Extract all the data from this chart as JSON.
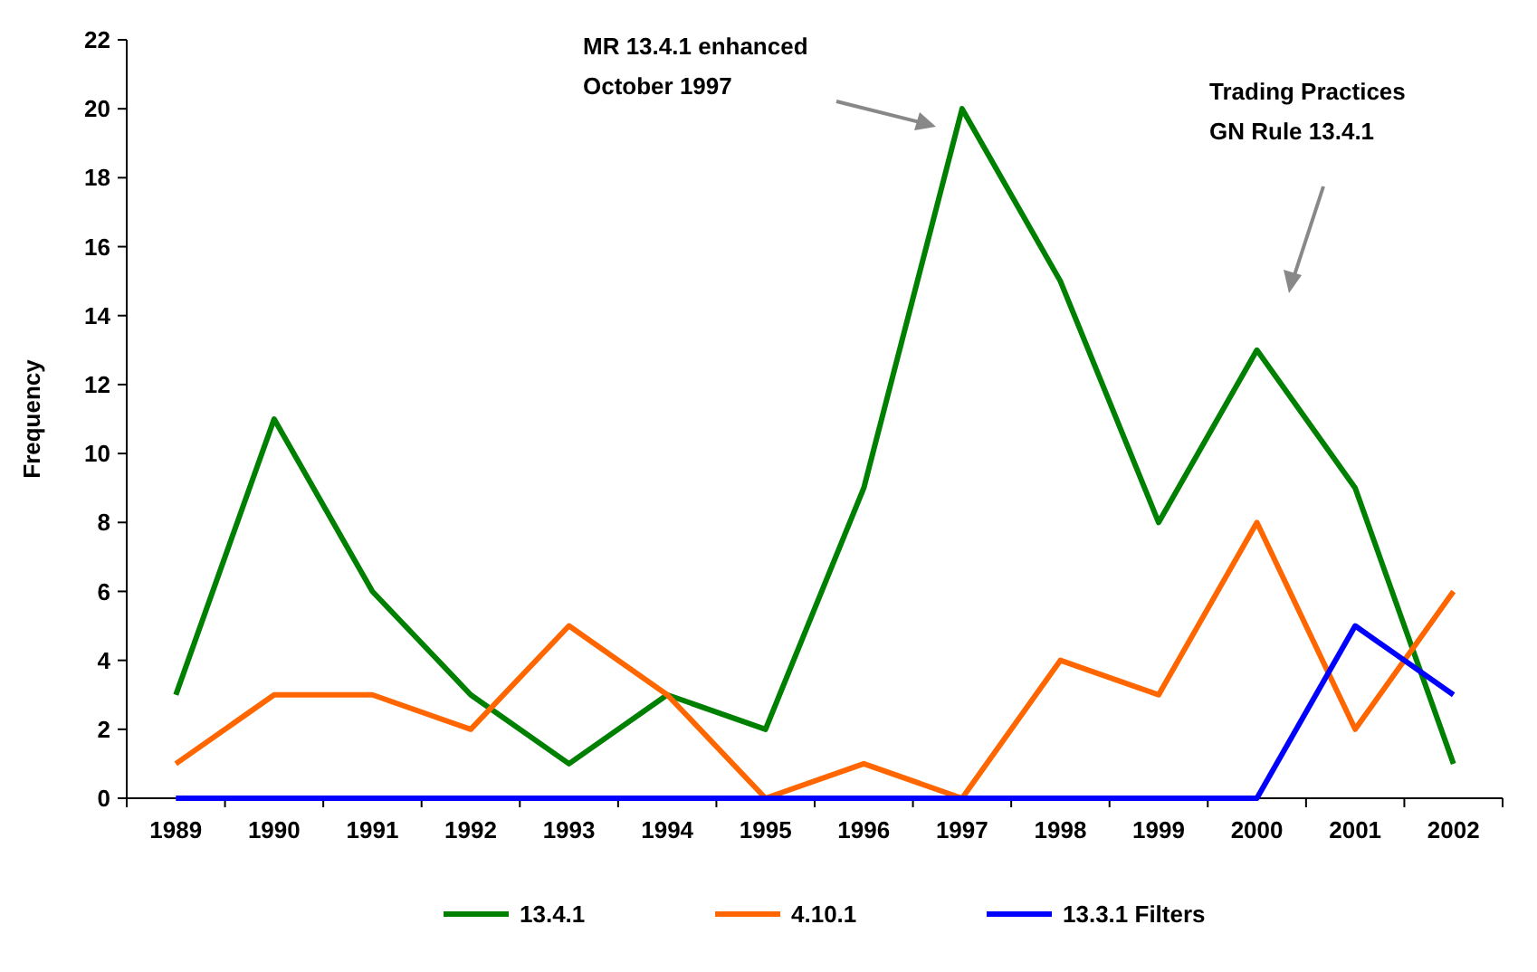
{
  "chart_data": {
    "type": "line",
    "ylabel": "Frequency",
    "categories": [
      "1989",
      "1990",
      "1991",
      "1992",
      "1993",
      "1994",
      "1995",
      "1996",
      "1997",
      "1998",
      "1999",
      "2000",
      "2001",
      "2002"
    ],
    "series": [
      {
        "name": "13.4.1",
        "color": "#008000",
        "values": [
          3,
          11,
          6,
          3,
          1,
          3,
          2,
          9,
          20,
          15,
          8,
          13,
          9,
          1
        ]
      },
      {
        "name": "4.10.1",
        "color": "#ff6600",
        "values": [
          1,
          3,
          3,
          2,
          5,
          3,
          0,
          1,
          0,
          4,
          3,
          8,
          2,
          6
        ]
      },
      {
        "name": "13.3.1 Filters",
        "color": "#0000ff",
        "values": [
          0,
          0,
          0,
          0,
          0,
          0,
          0,
          0,
          0,
          0,
          0,
          0,
          5,
          3
        ]
      }
    ],
    "ylim": [
      0,
      22
    ],
    "yticks": [
      0,
      2,
      4,
      6,
      8,
      10,
      12,
      14,
      16,
      18,
      20,
      22
    ],
    "grid": false,
    "legend": "bottom",
    "marker": "none",
    "line_style": "solid",
    "annotations": [
      "MR 13.4.1 enhanced\nOctober 1997",
      "Trading Practices\nGN Rule 13.4.1"
    ]
  }
}
